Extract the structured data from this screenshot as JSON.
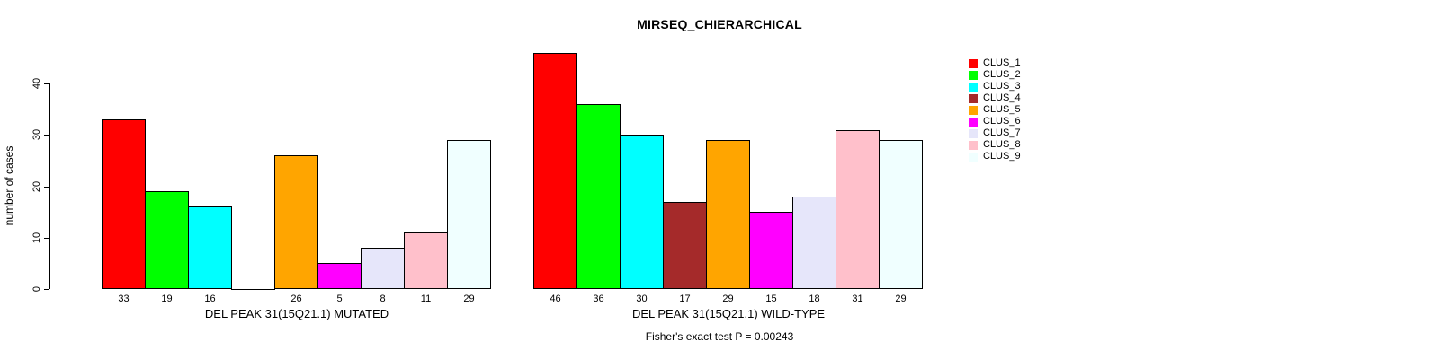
{
  "chart": {
    "title": "MIRSEQ_CHIERARCHICAL",
    "ylabel": "number of cases",
    "footer": "Fisher's exact test P = 0.00243"
  },
  "chart_data": {
    "type": "bar",
    "title": "MIRSEQ_CHIERARCHICAL",
    "ylabel": "number of cases",
    "xlabel": "",
    "ylim": [
      0,
      40
    ],
    "yticks": [
      0,
      10,
      20,
      30,
      40
    ],
    "grid": false,
    "annotation": "Fisher's exact test P = 0.00243",
    "series_colors": [
      "#FF0000",
      "#00FF00",
      "#00FFFF",
      "#A52A2A",
      "#FFA500",
      "#FF00FF",
      "#E6E6FA",
      "#FFC0CB",
      "#F0FFFF"
    ],
    "legend": {
      "position": "right-inside",
      "entries": [
        {
          "label": "CLUS_1",
          "color": "#FF0000"
        },
        {
          "label": "CLUS_2",
          "color": "#00FF00"
        },
        {
          "label": "CLUS_3",
          "color": "#00FFFF"
        },
        {
          "label": "CLUS_4",
          "color": "#A52A2A"
        },
        {
          "label": "CLUS_5",
          "color": "#FFA500"
        },
        {
          "label": "CLUS_6",
          "color": "#FF00FF"
        },
        {
          "label": "CLUS_7",
          "color": "#E6E6FA"
        },
        {
          "label": "CLUS_8",
          "color": "#FFC0CB"
        },
        {
          "label": "CLUS_9",
          "color": "#F0FFFF"
        }
      ]
    },
    "groups": [
      {
        "label": "DEL PEAK 31(15Q21.1) MUTATED",
        "clusters": [
          "CLUS_1",
          "CLUS_2",
          "CLUS_3",
          "CLUS_4",
          "CLUS_5",
          "CLUS_6",
          "CLUS_7",
          "CLUS_8",
          "CLUS_9"
        ],
        "values": [
          33,
          19,
          16,
          0,
          26,
          5,
          8,
          11,
          29
        ],
        "bar_labels": [
          "33",
          "19",
          "16",
          "",
          "26",
          "5",
          "8",
          "11",
          "29"
        ]
      },
      {
        "label": "DEL PEAK 31(15Q21.1) WILD-TYPE",
        "clusters": [
          "CLUS_1",
          "CLUS_2",
          "CLUS_3",
          "CLUS_4",
          "CLUS_5",
          "CLUS_6",
          "CLUS_7",
          "CLUS_8",
          "CLUS_9"
        ],
        "values": [
          46,
          36,
          30,
          17,
          29,
          15,
          18,
          31,
          29
        ],
        "bar_labels": [
          "46",
          "36",
          "30",
          "17",
          "29",
          "15",
          "18",
          "31",
          "29"
        ]
      }
    ]
  }
}
